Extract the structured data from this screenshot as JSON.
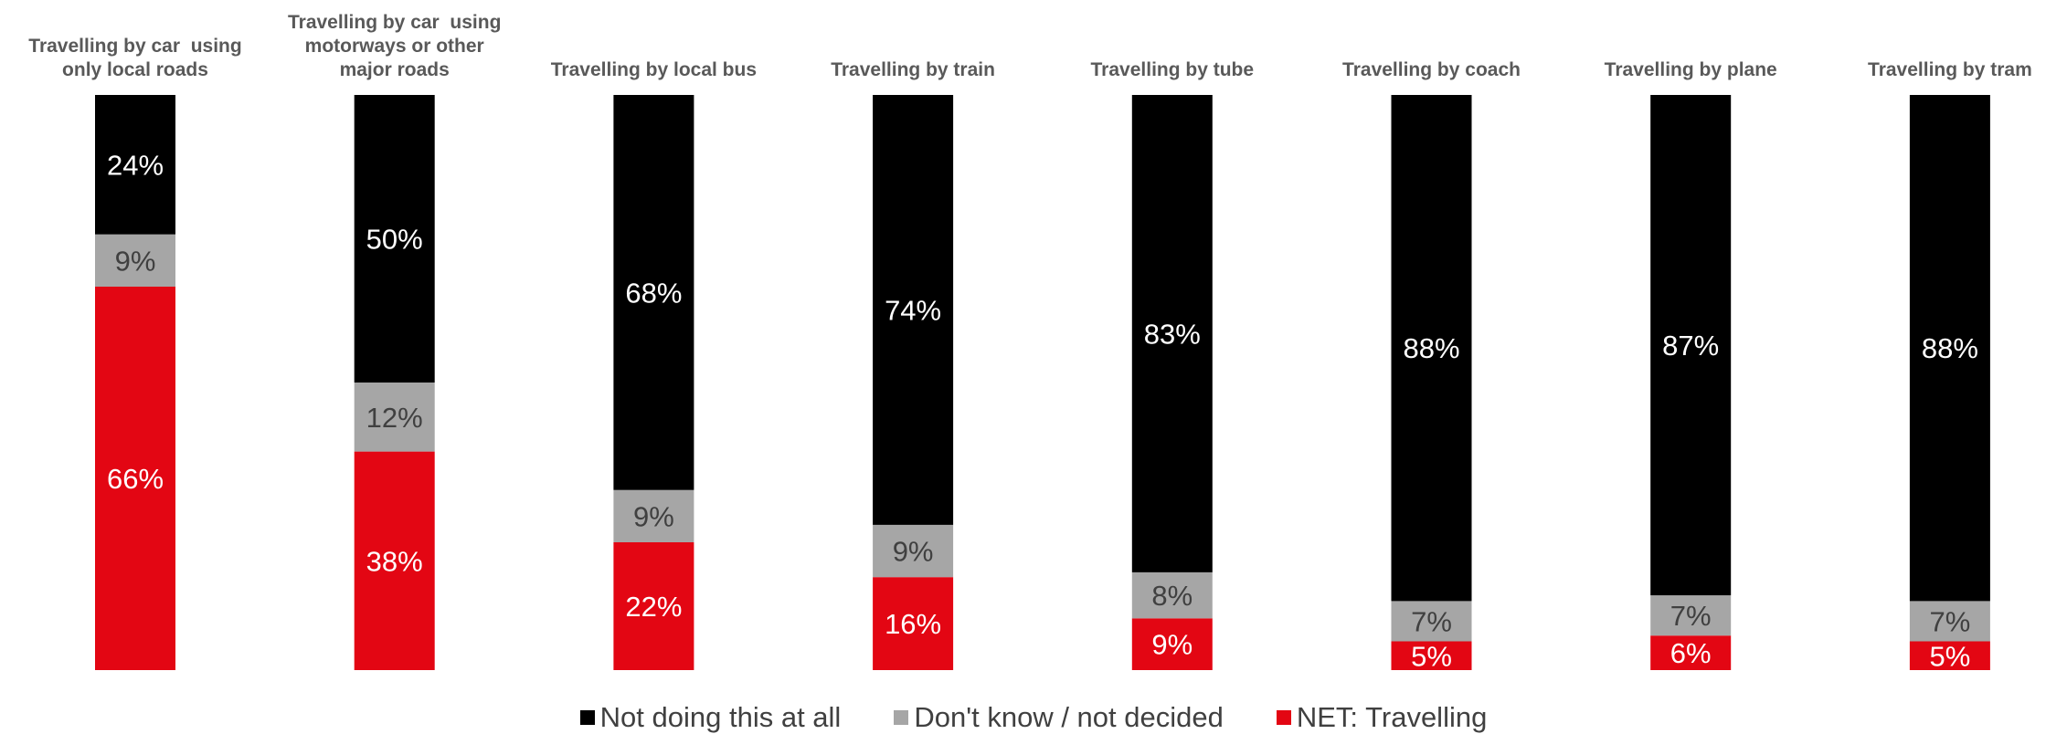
{
  "chart_data": {
    "type": "bar",
    "stacked": true,
    "normalized": true,
    "categories": [
      [
        "Travelling by car  using",
        "only local roads"
      ],
      [
        "Travelling by car  using",
        "motorways or other",
        "major roads"
      ],
      [
        "Travelling by local bus"
      ],
      [
        "Travelling by train"
      ],
      [
        "Travelling by tube"
      ],
      [
        "Travelling by coach"
      ],
      [
        "Travelling by plane"
      ],
      [
        "Travelling by tram"
      ]
    ],
    "series": [
      {
        "name": "NET: Travelling",
        "color": "#e30613",
        "label_color": "#ffffff",
        "values": [
          66,
          38,
          22,
          16,
          9,
          5,
          6,
          5
        ],
        "labels": [
          "66%",
          "38%",
          "22%",
          "16%",
          "9%",
          "5%",
          "6%",
          "5%"
        ]
      },
      {
        "name": "Don't know / not decided",
        "color": "#a6a6a6",
        "label_color": "#404040",
        "values": [
          9,
          12,
          9,
          9,
          8,
          7,
          7,
          7
        ],
        "labels": [
          "9%",
          "12%",
          "9%",
          "9%",
          "8%",
          "7%",
          "7%",
          "7%"
        ]
      },
      {
        "name": "Not doing this at all",
        "color": "#000000",
        "label_color": "#ffffff",
        "values": [
          24,
          50,
          68,
          74,
          83,
          88,
          87,
          88
        ],
        "labels": [
          "24%",
          "50%",
          "68%",
          "74%",
          "83%",
          "88%",
          "87%",
          "88%"
        ]
      }
    ],
    "legend": {
      "position": "bottom",
      "order": [
        "Not doing this at all",
        "Don't know / not decided",
        "NET: Travelling"
      ]
    },
    "grid": false,
    "axes_visible": false
  }
}
